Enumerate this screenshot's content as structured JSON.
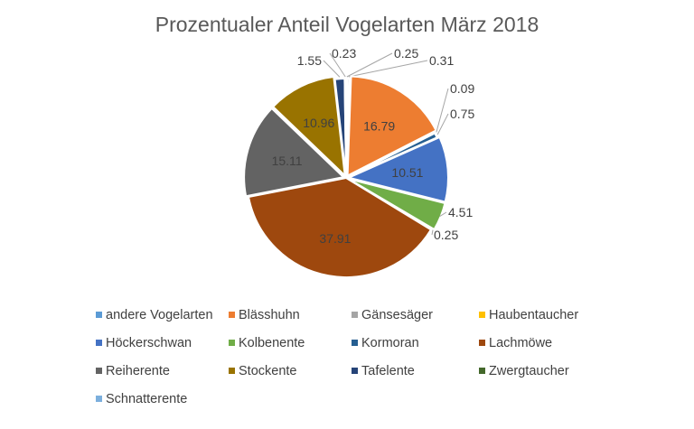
{
  "chart_data": {
    "type": "pie",
    "title": "Prozentualer Anteil Vogelarten März 2018",
    "slices": [
      {
        "name": "andere Vogelarten",
        "value": 0.25,
        "label": "0.25",
        "color": "#5B9BD5"
      },
      {
        "name": "Blässhuhn",
        "value": 16.79,
        "label": "16.79",
        "color": "#ED7D31"
      },
      {
        "name": "Gänsesäger",
        "value": 0.31,
        "label": "0.31",
        "color": "#A5A5A5"
      },
      {
        "name": "Haubentaucher",
        "value": 0.09,
        "label": "0.09",
        "color": "#FFC000"
      },
      {
        "name": "Höckerschwan",
        "value": 10.51,
        "label": "10.51",
        "color": "#4472C4"
      },
      {
        "name": "Kolbenente",
        "value": 4.51,
        "label": "4.51",
        "color": "#70AD47"
      },
      {
        "name": "Kormoran",
        "value": 0.75,
        "label": "0.75",
        "color": "#255E91"
      },
      {
        "name": "Lachmöwe",
        "value": 37.91,
        "label": "37.91",
        "color": "#9E480E"
      },
      {
        "name": "Reiherente",
        "value": 15.11,
        "label": "15.11",
        "color": "#636363"
      },
      {
        "name": "Stockente",
        "value": 10.96,
        "label": "10.96",
        "color": "#997300"
      },
      {
        "name": "Tafelente",
        "value": 1.55,
        "label": "1.55",
        "color": "#264478"
      },
      {
        "name": "Zwergtaucher",
        "value": 0.25,
        "label": "0.25",
        "color": "#43682B"
      },
      {
        "name": "Schnatterente",
        "value": 0.23,
        "label": "0.23",
        "color": "#7CAFDD"
      }
    ],
    "legend_position": "bottom"
  }
}
